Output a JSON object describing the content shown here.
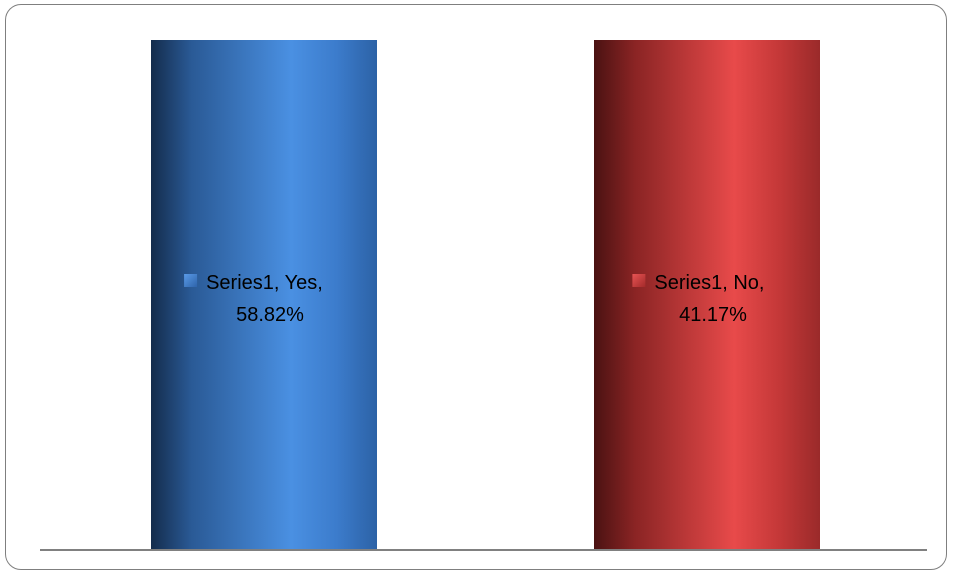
{
  "chart_data": {
    "type": "bar",
    "style": "3d-cylinder",
    "title": "",
    "xlabel": "",
    "ylabel": "",
    "categories": [
      "Yes",
      "No"
    ],
    "series": [
      {
        "name": "Series1",
        "values": [
          58.82,
          41.17
        ]
      }
    ],
    "data_labels": [
      {
        "series": "Series1, Yes,",
        "value": "58.82%"
      },
      {
        "series": "Series1, No,",
        "value": "41.17%"
      }
    ],
    "colors": [
      "#3e7fd0",
      "#b83535"
    ],
    "grid": false,
    "legend": "none"
  }
}
